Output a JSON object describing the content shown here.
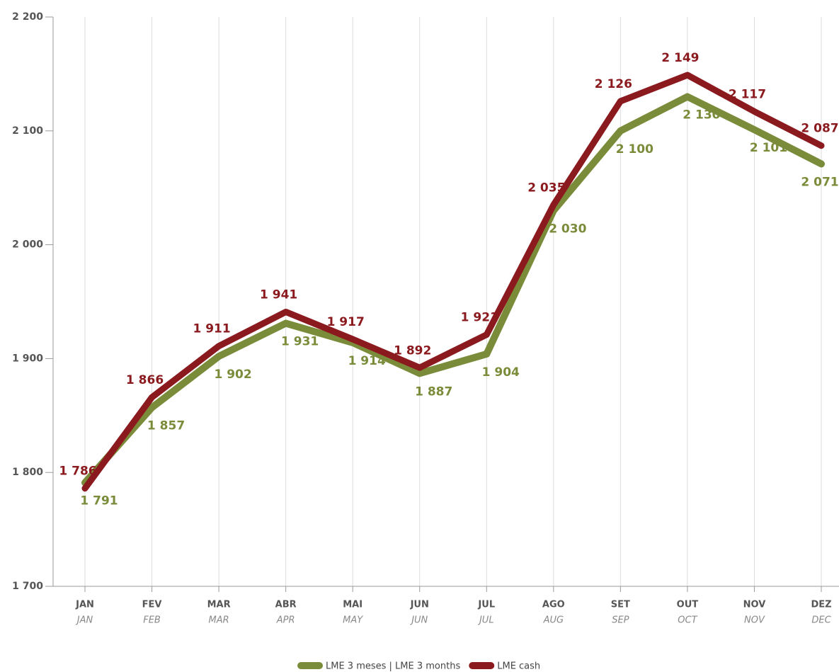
{
  "chart_data": {
    "type": "line",
    "categories": [
      "JAN",
      "FEV",
      "MAR",
      "ABR",
      "MAI",
      "JUN",
      "JUL",
      "AGO",
      "SET",
      "OUT",
      "NOV",
      "DEZ"
    ],
    "categories_en": [
      "JAN",
      "FEB",
      "MAR",
      "APR",
      "MAY",
      "JUN",
      "JUL",
      "AUG",
      "SEP",
      "OCT",
      "NOV",
      "DEC"
    ],
    "series": [
      {
        "name": "LME 3 meses | LME 3 months",
        "color": "#7a8c3a",
        "values": [
          1791,
          1857,
          1902,
          1931,
          1914,
          1887,
          1904,
          2030,
          2100,
          2130,
          2101,
          2071
        ],
        "value_labels": [
          "1 791",
          "1 857",
          "1 902",
          "1 931",
          "1 914",
          "1 887",
          "1 904",
          "2 030",
          "2 100",
          "2 130",
          "2 101",
          "2 071"
        ]
      },
      {
        "name": "LME cash",
        "color": "#8b1a1f",
        "values": [
          1786,
          1866,
          1911,
          1941,
          1917,
          1892,
          1921,
          2035,
          2126,
          2149,
          2117,
          2087
        ],
        "value_labels": [
          "1 786",
          "1 866",
          "1 911",
          "1 941",
          "1 917",
          "1 892",
          "1 921",
          "2 035",
          "2 126",
          "2 149",
          "2 117",
          "2 087"
        ]
      }
    ],
    "ylim": [
      1700,
      2200
    ],
    "yticks": [
      {
        "value": 1700,
        "label": "1 700"
      },
      {
        "value": 1800,
        "label": "1 800"
      },
      {
        "value": 1900,
        "label": "1 900"
      },
      {
        "value": 2000,
        "label": "2 000"
      },
      {
        "value": 2100,
        "label": "2 100"
      },
      {
        "value": 2200,
        "label": "2 200"
      }
    ],
    "grid": true,
    "legend": "bottom"
  }
}
